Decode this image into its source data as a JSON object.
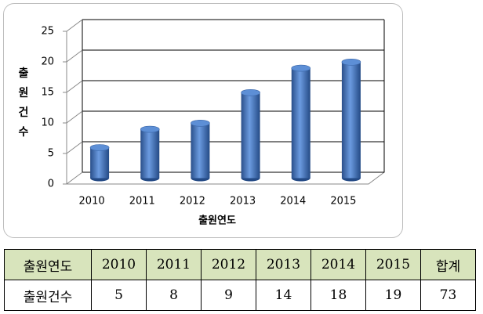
{
  "chart_data": {
    "type": "bar",
    "y_label": "출원건수",
    "x_label": "출원연도",
    "categories": [
      "2010",
      "2011",
      "2012",
      "2013",
      "2014",
      "2015"
    ],
    "values": [
      5,
      8,
      9,
      14,
      18,
      19
    ],
    "color": "#3f70b8",
    "ylim": [
      0,
      25
    ],
    "yticks": [
      0,
      5,
      10,
      15,
      20,
      25
    ],
    "grid": true
  },
  "table": {
    "rows": [
      [
        "출원연도",
        "2010",
        "2011",
        "2012",
        "2013",
        "2014",
        "2015",
        "합계"
      ],
      [
        "출원건수",
        "5",
        "8",
        "9",
        "14",
        "18",
        "19",
        "73"
      ]
    ]
  }
}
